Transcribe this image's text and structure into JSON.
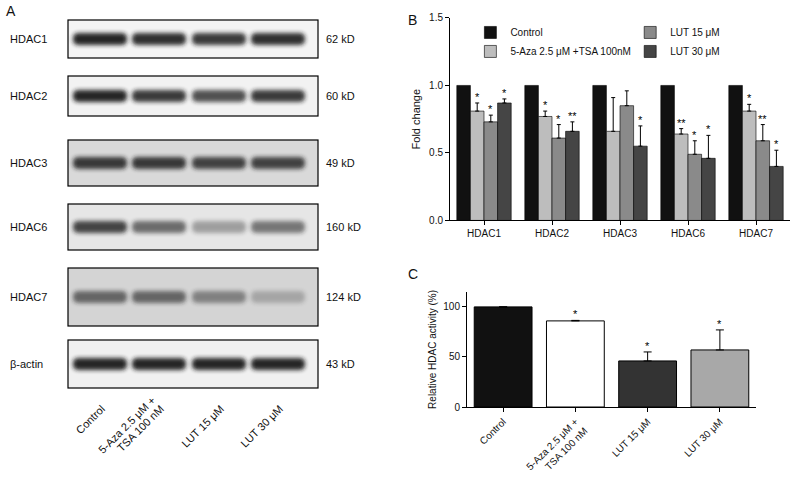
{
  "blot": {
    "panel_label": "A",
    "proteins": [
      {
        "name": "HDAC1",
        "size": "62 kD"
      },
      {
        "name": "HDAC2",
        "size": "60 kD"
      },
      {
        "name": "HDAC3",
        "size": "49 kD"
      },
      {
        "name": "HDAC6",
        "size": "160 kD"
      },
      {
        "name": "HDAC7",
        "size": "124 kD"
      },
      {
        "name": "β-actin",
        "size": "43 kD"
      }
    ],
    "lanes": [
      "Control",
      "5-Aza 2.5 μM +\nTSA 100 nM",
      "LUT 15 μM",
      "LUT 30 μM"
    ]
  },
  "chart_data": [
    {
      "type": "bar",
      "title": "B",
      "categories": [
        "HDAC1",
        "HDAC2",
        "HDAC3",
        "HDAC6",
        "HDAC7"
      ],
      "y_label": "Fold change",
      "ylim": [
        0,
        1.5
      ],
      "yticks": [
        {
          "value": 0,
          "label": "0.0"
        },
        {
          "value": 0.5,
          "label": "0.5"
        },
        {
          "value": 1,
          "label": "1.0"
        },
        {
          "value": 1.5,
          "label": "1.5"
        }
      ],
      "grid": false,
      "legend": "upper left",
      "series": [
        {
          "name": "Control",
          "color": "#111111",
          "values": [
            1,
            1,
            1,
            1,
            1
          ]
        },
        {
          "name": "5-Aza 2.5 μM +TSA 100nM",
          "color": "#bdbdbd",
          "values": [
            0.81,
            0.77,
            0.66,
            0.64,
            0.81
          ],
          "errors": [
            0.06,
            0.04,
            0.25,
            0.04,
            0.05
          ],
          "annotations": [
            "*",
            "*",
            null,
            "**",
            "*"
          ]
        },
        {
          "name": "LUT 15 μM",
          "color": "#8a8a8a",
          "values": [
            0.73,
            0.61,
            0.85,
            0.49,
            0.59
          ],
          "errors": [
            0.05,
            0.1,
            0.11,
            0.1,
            0.12
          ],
          "annotations": [
            "*",
            "*",
            null,
            "*",
            "**"
          ]
        },
        {
          "name": "LUT 30 μM",
          "color": "#454545",
          "values": [
            0.87,
            0.66,
            0.55,
            0.46,
            0.4
          ],
          "errors": [
            0.03,
            0.07,
            0.15,
            0.17,
            0.12
          ],
          "annotations": [
            "*",
            "**",
            "*",
            "*",
            "*"
          ]
        }
      ]
    },
    {
      "type": "bar",
      "title": "C",
      "categories": [
        "Control",
        "5-Aza 2.5 μM +\nTSA 100 nM",
        "LUT 15 μM",
        "LUT 30 μM"
      ],
      "y_label": "Relative HDAC activity (%)",
      "ylim": [
        0,
        115
      ],
      "yticks": [
        0,
        50,
        100
      ],
      "grid": false,
      "colors": [
        "#111111",
        "#ffffff",
        "#333333",
        "#a8a8a8"
      ],
      "values": [
        100,
        86,
        46,
        57
      ],
      "errors": [
        0,
        0.5,
        9,
        20
      ],
      "annotations": [
        null,
        "*",
        "*",
        "*"
      ]
    }
  ]
}
